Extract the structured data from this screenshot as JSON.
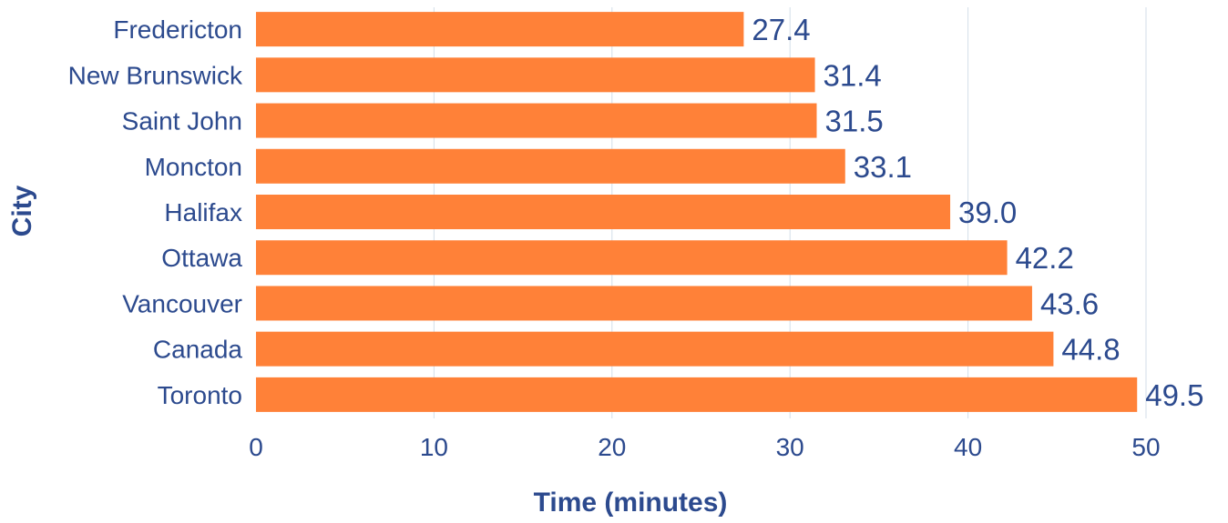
{
  "chart_data": {
    "type": "bar",
    "orientation": "horizontal",
    "categories": [
      "Fredericton",
      "New Brunswick",
      "Saint John",
      "Moncton",
      "Halifax",
      "Ottawa",
      "Vancouver",
      "Canada",
      "Toronto"
    ],
    "values": [
      27.4,
      31.4,
      31.5,
      33.1,
      39.0,
      42.2,
      43.6,
      44.8,
      49.5
    ],
    "value_labels": [
      "27.4",
      "31.4",
      "31.5",
      "33.1",
      "39.0",
      "42.2",
      "43.6",
      "44.8",
      "49.5"
    ],
    "xlabel": "Time (minutes)",
    "ylabel": "City",
    "xlim": [
      0,
      50
    ],
    "x_ticks": [
      0,
      10,
      20,
      30,
      40,
      50
    ],
    "x_tick_labels": [
      "0",
      "10",
      "20",
      "30",
      "40",
      "50"
    ],
    "grid": "vertical",
    "legend": "none",
    "colors": {
      "bar": "#FF8138",
      "text": "#2C4A8E",
      "grid": "#D3DEE8"
    }
  }
}
